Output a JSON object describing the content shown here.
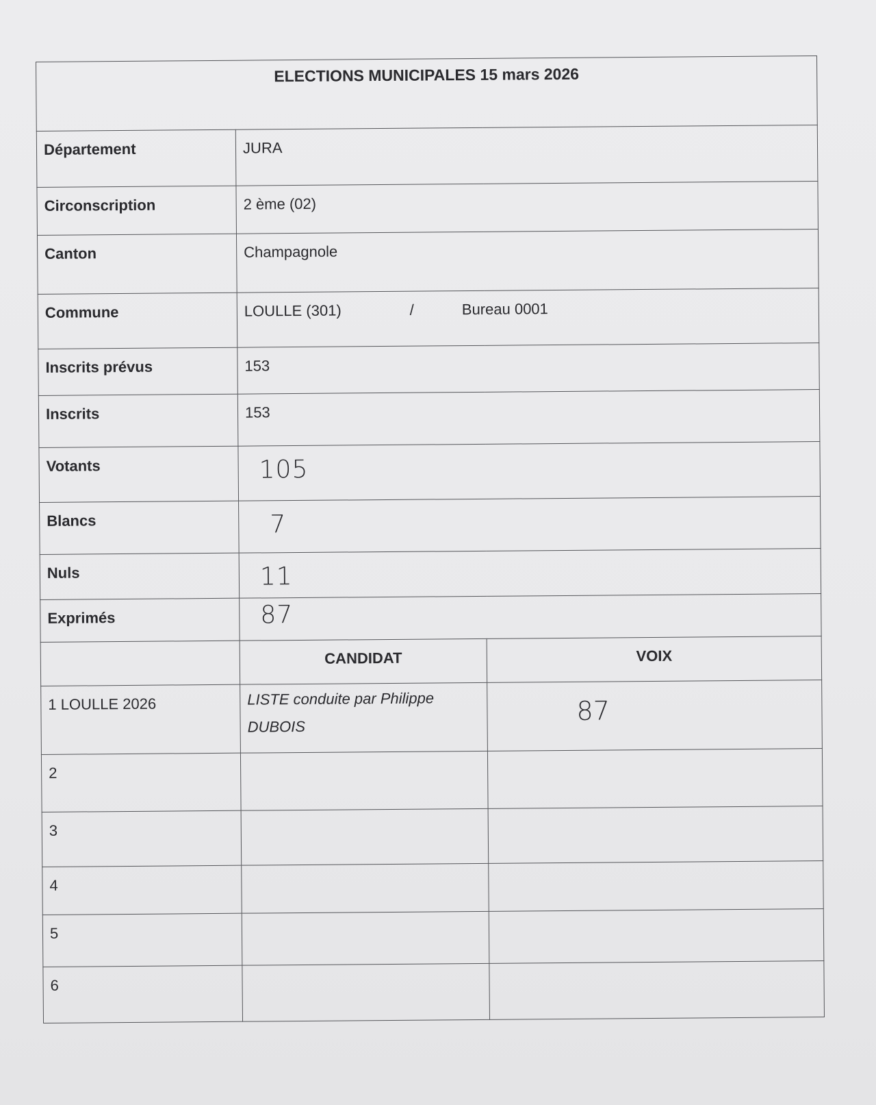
{
  "title": "ELECTIONS MUNICIPALES 15 mars 2026",
  "fields": [
    {
      "label": "Département",
      "value": "JURA"
    },
    {
      "label": "Circonscription",
      "value": "2 ème (02)"
    },
    {
      "label": "Canton",
      "value": "Champagnole"
    },
    {
      "label": "Commune",
      "value": "LOULLE (301)",
      "separator": "/",
      "bureau": "Bureau 0001"
    },
    {
      "label": "Inscrits prévus",
      "value": "153"
    },
    {
      "label": "Inscrits",
      "value": "153"
    },
    {
      "label": "Votants",
      "value": "105",
      "handwritten": true
    },
    {
      "label": "Blancs",
      "value": "7",
      "handwritten": true
    },
    {
      "label": "Nuls",
      "value": "11",
      "handwritten": true
    },
    {
      "label": "Exprimés",
      "value": "87",
      "handwritten": true
    }
  ],
  "results": {
    "headers": {
      "candidat": "CANDIDAT",
      "voix": "VOIX"
    },
    "rows": [
      {
        "num": "1 LOULLE 2026",
        "candidat_line1": "LISTE conduite par Philippe",
        "candidat_line2": "DUBOIS",
        "voix": "87"
      },
      {
        "num": "2",
        "candidat_line1": "",
        "candidat_line2": "",
        "voix": ""
      },
      {
        "num": "3",
        "candidat_line1": "",
        "candidat_line2": "",
        "voix": ""
      },
      {
        "num": "4",
        "candidat_line1": "",
        "candidat_line2": "",
        "voix": ""
      },
      {
        "num": "5",
        "candidat_line1": "",
        "candidat_line2": "",
        "voix": ""
      },
      {
        "num": "6",
        "candidat_line1": "",
        "candidat_line2": "",
        "voix": ""
      }
    ]
  }
}
